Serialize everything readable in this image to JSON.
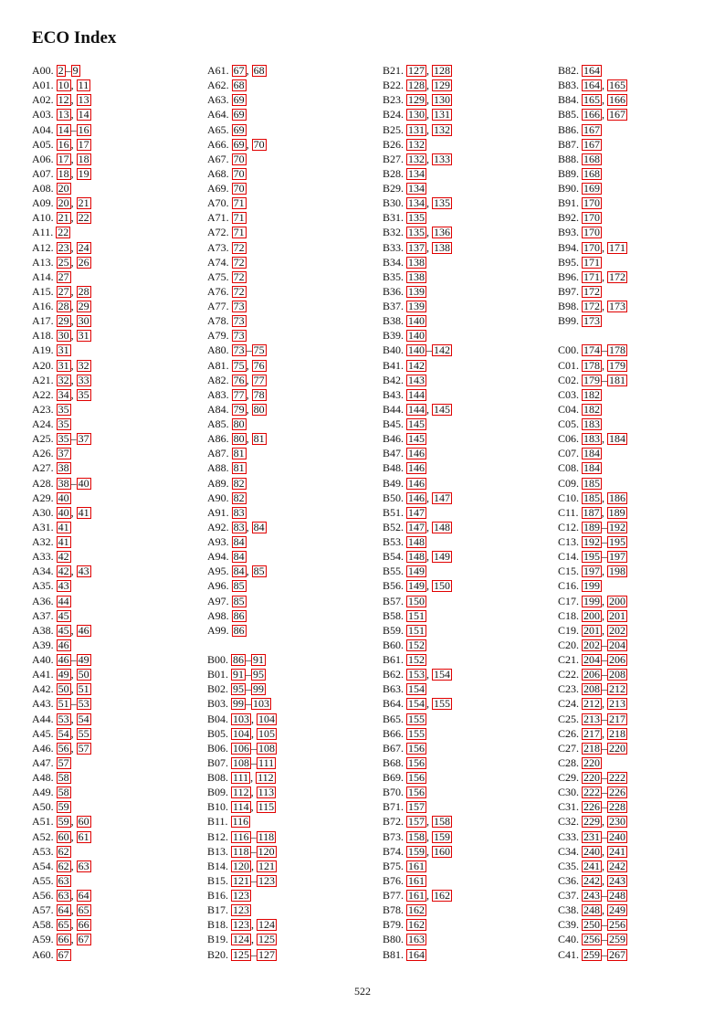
{
  "title": "ECO Index",
  "page_number": "522",
  "columns": [
    [
      [
        [
          "A00.",
          2,
          "–",
          9
        ],
        [
          "A01.",
          10,
          ", ",
          11
        ],
        [
          "A02.",
          12,
          ", ",
          13
        ],
        [
          "A03.",
          13,
          ", ",
          14
        ],
        [
          "A04.",
          14,
          "–",
          16
        ],
        [
          "A05.",
          16,
          ", ",
          17
        ],
        [
          "A06.",
          17,
          ", ",
          18
        ],
        [
          "A07.",
          18,
          ", ",
          19
        ],
        [
          "A08.",
          20
        ],
        [
          "A09.",
          20,
          ", ",
          21
        ],
        [
          "A10.",
          21,
          ", ",
          22
        ],
        [
          "A11.",
          22
        ],
        [
          "A12.",
          23,
          ", ",
          24
        ],
        [
          "A13.",
          25,
          ", ",
          26
        ],
        [
          "A14.",
          27
        ],
        [
          "A15.",
          27,
          ", ",
          28
        ],
        [
          "A16.",
          28,
          ", ",
          29
        ],
        [
          "A17.",
          29,
          ", ",
          30
        ],
        [
          "A18.",
          30,
          ", ",
          31
        ],
        [
          "A19.",
          31
        ],
        [
          "A20.",
          31,
          ", ",
          32
        ],
        [
          "A21.",
          32,
          ", ",
          33
        ],
        [
          "A22.",
          34,
          ", ",
          35
        ],
        [
          "A23.",
          35
        ],
        [
          "A24.",
          35
        ],
        [
          "A25.",
          35,
          "–",
          37
        ],
        [
          "A26.",
          37
        ],
        [
          "A27.",
          38
        ],
        [
          "A28.",
          38,
          "–",
          40
        ],
        [
          "A29.",
          40
        ],
        [
          "A30.",
          40,
          ", ",
          41
        ],
        [
          "A31.",
          41
        ],
        [
          "A32.",
          41
        ],
        [
          "A33.",
          42
        ],
        [
          "A34.",
          42,
          ", ",
          43
        ],
        [
          "A35.",
          43
        ],
        [
          "A36.",
          44
        ],
        [
          "A37.",
          45
        ],
        [
          "A38.",
          45,
          ", ",
          46
        ],
        [
          "A39.",
          46
        ],
        [
          "A40.",
          46,
          "–",
          49
        ],
        [
          "A41.",
          49,
          ", ",
          50
        ],
        [
          "A42.",
          50,
          ", ",
          51
        ],
        [
          "A43.",
          51,
          "–",
          53
        ],
        [
          "A44.",
          53,
          ", ",
          54
        ],
        [
          "A45.",
          54,
          ", ",
          55
        ],
        [
          "A46.",
          56,
          ", ",
          57
        ],
        [
          "A47.",
          57
        ],
        [
          "A48.",
          58
        ],
        [
          "A49.",
          58
        ],
        [
          "A50.",
          59
        ],
        [
          "A51.",
          59,
          ", ",
          60
        ],
        [
          "A52.",
          60,
          ", ",
          61
        ],
        [
          "A53.",
          62
        ],
        [
          "A54.",
          62,
          ", ",
          63
        ],
        [
          "A55.",
          63
        ],
        [
          "A56.",
          63,
          ", ",
          64
        ],
        [
          "A57.",
          64,
          ", ",
          65
        ],
        [
          "A58.",
          65,
          ", ",
          66
        ],
        [
          "A59.",
          66,
          ", ",
          67
        ],
        [
          "A60.",
          67
        ]
      ]
    ],
    [
      [
        [
          "A61.",
          67,
          ", ",
          68
        ],
        [
          "A62.",
          68
        ],
        [
          "A63.",
          69
        ],
        [
          "A64.",
          69
        ],
        [
          "A65.",
          69
        ],
        [
          "A66.",
          69,
          ", ",
          70
        ],
        [
          "A67.",
          70
        ],
        [
          "A68.",
          70
        ],
        [
          "A69.",
          70
        ],
        [
          "A70.",
          71
        ],
        [
          "A71.",
          71
        ],
        [
          "A72.",
          71
        ],
        [
          "A73.",
          72
        ],
        [
          "A74.",
          72
        ],
        [
          "A75.",
          72
        ],
        [
          "A76.",
          72
        ],
        [
          "A77.",
          73
        ],
        [
          "A78.",
          73
        ],
        [
          "A79.",
          73
        ],
        [
          "A80.",
          73,
          "–",
          75
        ],
        [
          "A81.",
          75,
          ", ",
          76
        ],
        [
          "A82.",
          76,
          ", ",
          77
        ],
        [
          "A83.",
          77,
          ", ",
          78
        ],
        [
          "A84.",
          79,
          ", ",
          80
        ],
        [
          "A85.",
          80
        ],
        [
          "A86.",
          80,
          ", ",
          81
        ],
        [
          "A87.",
          81
        ],
        [
          "A88.",
          81
        ],
        [
          "A89.",
          82
        ],
        [
          "A90.",
          82
        ],
        [
          "A91.",
          83
        ],
        [
          "A92.",
          83,
          ", ",
          84
        ],
        [
          "A93.",
          84
        ],
        [
          "A94.",
          84
        ],
        [
          "A95.",
          84,
          ", ",
          85
        ],
        [
          "A96.",
          85
        ],
        [
          "A97.",
          85
        ],
        [
          "A98.",
          86
        ],
        [
          "A99.",
          86
        ]
      ],
      [
        [
          "B00.",
          86,
          "–",
          91
        ],
        [
          "B01.",
          91,
          "–",
          95
        ],
        [
          "B02.",
          95,
          "–",
          99
        ],
        [
          "B03.",
          99,
          "–",
          103
        ],
        [
          "B04.",
          103,
          ", ",
          104
        ],
        [
          "B05.",
          104,
          ", ",
          105
        ],
        [
          "B06.",
          106,
          "–",
          108
        ],
        [
          "B07.",
          108,
          "–",
          111
        ],
        [
          "B08.",
          111,
          ", ",
          112
        ],
        [
          "B09.",
          112,
          ", ",
          113
        ],
        [
          "B10.",
          114,
          ", ",
          115
        ],
        [
          "B11.",
          116
        ],
        [
          "B12.",
          116,
          "–",
          118
        ],
        [
          "B13.",
          118,
          "–",
          120
        ],
        [
          "B14.",
          120,
          ", ",
          121
        ],
        [
          "B15.",
          121,
          "–",
          123
        ],
        [
          "B16.",
          123
        ],
        [
          "B17.",
          123
        ],
        [
          "B18.",
          123,
          ", ",
          124
        ],
        [
          "B19.",
          124,
          ", ",
          125
        ],
        [
          "B20.",
          125,
          "–",
          127
        ]
      ]
    ],
    [
      [
        [
          "B21.",
          127,
          ", ",
          128
        ],
        [
          "B22.",
          128,
          ", ",
          129
        ],
        [
          "B23.",
          129,
          ", ",
          130
        ],
        [
          "B24.",
          130,
          ", ",
          131
        ],
        [
          "B25.",
          131,
          ", ",
          132
        ],
        [
          "B26.",
          132
        ],
        [
          "B27.",
          132,
          ", ",
          133
        ],
        [
          "B28.",
          134
        ],
        [
          "B29.",
          134
        ],
        [
          "B30.",
          134,
          ", ",
          135
        ],
        [
          "B31.",
          135
        ],
        [
          "B32.",
          135,
          ", ",
          136
        ],
        [
          "B33.",
          137,
          ", ",
          138
        ],
        [
          "B34.",
          138
        ],
        [
          "B35.",
          138
        ],
        [
          "B36.",
          139
        ],
        [
          "B37.",
          139
        ],
        [
          "B38.",
          140
        ],
        [
          "B39.",
          140
        ],
        [
          "B40.",
          140,
          "–",
          142
        ],
        [
          "B41.",
          142
        ],
        [
          "B42.",
          143
        ],
        [
          "B43.",
          144
        ],
        [
          "B44.",
          144,
          ", ",
          145
        ],
        [
          "B45.",
          145
        ],
        [
          "B46.",
          145
        ],
        [
          "B47.",
          146
        ],
        [
          "B48.",
          146
        ],
        [
          "B49.",
          146
        ],
        [
          "B50.",
          146,
          ", ",
          147
        ],
        [
          "B51.",
          147
        ],
        [
          "B52.",
          147,
          ", ",
          148
        ],
        [
          "B53.",
          148
        ],
        [
          "B54.",
          148,
          ", ",
          149
        ],
        [
          "B55.",
          149
        ],
        [
          "B56.",
          149,
          ", ",
          150
        ],
        [
          "B57.",
          150
        ],
        [
          "B58.",
          151
        ],
        [
          "B59.",
          151
        ],
        [
          "B60.",
          152
        ],
        [
          "B61.",
          152
        ],
        [
          "B62.",
          153,
          ", ",
          154
        ],
        [
          "B63.",
          154
        ],
        [
          "B64.",
          154,
          ", ",
          155
        ],
        [
          "B65.",
          155
        ],
        [
          "B66.",
          155
        ],
        [
          "B67.",
          156
        ],
        [
          "B68.",
          156
        ],
        [
          "B69.",
          156
        ],
        [
          "B70.",
          156
        ],
        [
          "B71.",
          157
        ],
        [
          "B72.",
          157,
          ", ",
          158
        ],
        [
          "B73.",
          158,
          ", ",
          159
        ],
        [
          "B74.",
          159,
          ", ",
          160
        ],
        [
          "B75.",
          161
        ],
        [
          "B76.",
          161
        ],
        [
          "B77.",
          161,
          ", ",
          162
        ],
        [
          "B78.",
          162
        ],
        [
          "B79.",
          162
        ],
        [
          "B80.",
          163
        ],
        [
          "B81.",
          164
        ]
      ]
    ],
    [
      [
        [
          "B82.",
          164
        ],
        [
          "B83.",
          164,
          ", ",
          165
        ],
        [
          "B84.",
          165,
          ", ",
          166
        ],
        [
          "B85.",
          166,
          ", ",
          167
        ],
        [
          "B86.",
          167
        ],
        [
          "B87.",
          167
        ],
        [
          "B88.",
          168
        ],
        [
          "B89.",
          168
        ],
        [
          "B90.",
          169
        ],
        [
          "B91.",
          170
        ],
        [
          "B92.",
          170
        ],
        [
          "B93.",
          170
        ],
        [
          "B94.",
          170,
          ", ",
          171
        ],
        [
          "B95.",
          171
        ],
        [
          "B96.",
          171,
          ", ",
          172
        ],
        [
          "B97.",
          172
        ],
        [
          "B98.",
          172,
          ", ",
          173
        ],
        [
          "B99.",
          173
        ]
      ],
      [
        [
          "C00.",
          174,
          "–",
          178
        ],
        [
          "C01.",
          178,
          ", ",
          179
        ],
        [
          "C02.",
          179,
          "–",
          181
        ],
        [
          "C03.",
          182
        ],
        [
          "C04.",
          182
        ],
        [
          "C05.",
          183
        ],
        [
          "C06.",
          183,
          ", ",
          184
        ],
        [
          "C07.",
          184
        ],
        [
          "C08.",
          184
        ],
        [
          "C09.",
          185
        ],
        [
          "C10.",
          185,
          ", ",
          186
        ],
        [
          "C11.",
          187,
          ", ",
          189
        ],
        [
          "C12.",
          189,
          "–",
          192
        ],
        [
          "C13.",
          192,
          "–",
          195
        ],
        [
          "C14.",
          195,
          "–",
          197
        ],
        [
          "C15.",
          197,
          ", ",
          198
        ],
        [
          "C16.",
          199
        ],
        [
          "C17.",
          199,
          ", ",
          200
        ],
        [
          "C18.",
          200,
          ", ",
          201
        ],
        [
          "C19.",
          201,
          ", ",
          202
        ],
        [
          "C20.",
          202,
          "–",
          204
        ],
        [
          "C21.",
          204,
          "–",
          206
        ],
        [
          "C22.",
          206,
          "–",
          208
        ],
        [
          "C23.",
          208,
          "–",
          212
        ],
        [
          "C24.",
          212,
          ", ",
          213
        ],
        [
          "C25.",
          213,
          "–",
          217
        ],
        [
          "C26.",
          217,
          ", ",
          218
        ],
        [
          "C27.",
          218,
          "–",
          220
        ],
        [
          "C28.",
          220
        ],
        [
          "C29.",
          220,
          "–",
          222
        ],
        [
          "C30.",
          222,
          "–",
          226
        ],
        [
          "C31.",
          226,
          "–",
          228
        ],
        [
          "C32.",
          229,
          ", ",
          230
        ],
        [
          "C33.",
          231,
          "–",
          240
        ],
        [
          "C34.",
          240,
          ", ",
          241
        ],
        [
          "C35.",
          241,
          ", ",
          242
        ],
        [
          "C36.",
          242,
          ", ",
          243
        ],
        [
          "C37.",
          243,
          "–",
          248
        ],
        [
          "C38.",
          248,
          ", ",
          249
        ],
        [
          "C39.",
          250,
          "–",
          256
        ],
        [
          "C40.",
          256,
          "–",
          259
        ],
        [
          "C41.",
          259,
          "–",
          267
        ]
      ]
    ]
  ]
}
